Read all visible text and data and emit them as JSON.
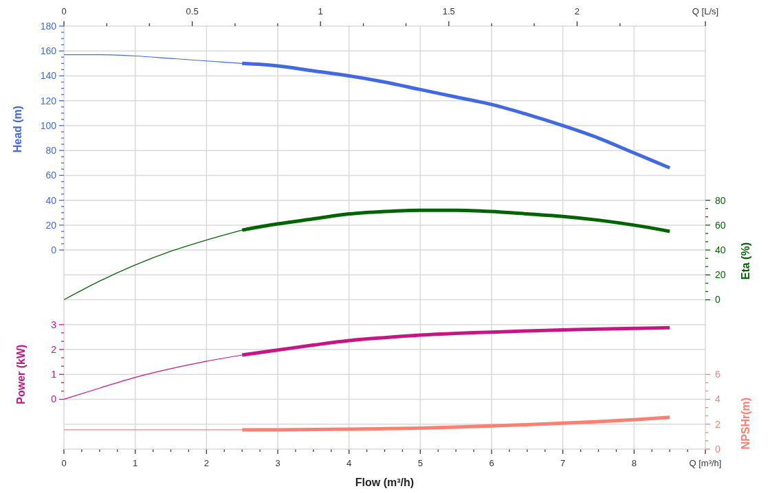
{
  "chart_data": [
    {
      "type": "line",
      "xlabel": "Flow (m³/h)",
      "ylabel": "Head (m)",
      "y2label": "Eta (%)",
      "xlim": [
        0,
        9
      ],
      "xticks": [
        0,
        {
          "value": 0.25,
          "label": null
        },
        {
          "value": 0.5,
          "label": null
        },
        {
          "value": 0.75,
          "label": null
        },
        1,
        {
          "value": 1.25,
          "label": null
        },
        {
          "value": 1.5,
          "label": null
        },
        {
          "value": 1.75,
          "label": null
        },
        2,
        {
          "value": 2.25,
          "label": null
        },
        {
          "value": 2.5,
          "label": null
        },
        {
          "value": 2.75,
          "label": null
        },
        3,
        {
          "value": 3.25,
          "label": null
        },
        {
          "value": 3.5,
          "label": null
        },
        {
          "value": 3.75,
          "label": null
        },
        4,
        {
          "value": 4.25,
          "label": null
        },
        {
          "value": 4.5,
          "label": null
        },
        {
          "value": 4.75,
          "label": null
        },
        5,
        {
          "value": 5.25,
          "label": null
        },
        {
          "value": 5.5,
          "label": null
        },
        {
          "value": 5.75,
          "label": null
        },
        6,
        {
          "value": 6.25,
          "label": null
        },
        {
          "value": 6.5,
          "label": null
        },
        {
          "value": 6.75,
          "label": null
        },
        7,
        {
          "value": 7.25,
          "label": null
        },
        {
          "value": 7.5,
          "label": null
        },
        {
          "value": 7.75,
          "label": null
        },
        8,
        {
          "value": 8.25,
          "label": null
        },
        {
          "value": 8.5,
          "label": null
        },
        {
          "value": 8.75,
          "label": null
        },
        {
          "value": 9,
          "label": "Q [m³/h]"
        }
      ],
      "x2lim": [
        0,
        2.5
      ],
      "x2ticks": [
        0,
        {
          "value": 0.167,
          "label": null
        },
        {
          "value": 0.333,
          "label": null
        },
        0.5,
        {
          "value": 0.667,
          "label": null
        },
        {
          "value": 0.833,
          "label": null
        },
        1,
        {
          "value": 1.167,
          "label": null
        },
        {
          "value": 1.333,
          "label": null
        },
        1.5,
        {
          "value": 1.667,
          "label": null
        },
        {
          "value": 1.833,
          "label": null
        },
        2,
        {
          "value": 2.167,
          "label": null
        },
        {
          "value": 2.5,
          "label": "Q [L/s]"
        }
      ],
      "ylim": [
        -160,
        180
      ],
      "yticks": [
        0,
        {
          "value": 5,
          "label": null
        },
        {
          "value": 10,
          "label": null
        },
        {
          "value": 15,
          "label": null
        },
        20,
        {
          "value": 25,
          "label": null
        },
        {
          "value": 30,
          "label": null
        },
        {
          "value": 35,
          "label": null
        },
        40,
        {
          "value": 45,
          "label": null
        },
        {
          "value": 50,
          "label": null
        },
        {
          "value": 55,
          "label": null
        },
        60,
        {
          "value": 65,
          "label": null
        },
        {
          "value": 70,
          "label": null
        },
        {
          "value": 75,
          "label": null
        },
        80,
        {
          "value": 85,
          "label": null
        },
        {
          "value": 90,
          "label": null
        },
        {
          "value": 95,
          "label": null
        },
        100,
        {
          "value": 105,
          "label": null
        },
        {
          "value": 110,
          "label": null
        },
        {
          "value": 115,
          "label": null
        },
        120,
        {
          "value": 125,
          "label": null
        },
        {
          "value": 130,
          "label": null
        },
        {
          "value": 135,
          "label": null
        },
        140,
        {
          "value": 145,
          "label": null
        },
        {
          "value": 150,
          "label": null
        },
        {
          "value": 155,
          "label": null
        },
        160,
        {
          "value": 165,
          "label": null
        },
        {
          "value": 170,
          "label": null
        },
        {
          "value": 175,
          "label": null
        },
        180
      ],
      "y2lim": [
        -120,
        220
      ],
      "y2ticks": [
        0,
        {
          "value": 6.67,
          "label": null
        },
        {
          "value": 13.33,
          "label": null
        },
        20,
        {
          "value": 26.67,
          "label": null
        },
        {
          "value": 33.33,
          "label": null
        },
        40,
        {
          "value": 46.67,
          "label": null
        },
        {
          "value": 53.33,
          "label": null
        },
        60,
        {
          "value": 66.67,
          "label": null
        },
        {
          "value": 73.33,
          "label": null
        },
        80
      ],
      "grid": true,
      "series": [
        {
          "color": "#4169e1",
          "x": [
            0,
            0.5,
            1,
            1.5,
            2,
            2.5
          ],
          "values": [
            157,
            157,
            156,
            154,
            152,
            150
          ]
        },
        {
          "color": "#4169e1",
          "x": [
            2.5,
            3,
            3.5,
            4,
            4.5,
            5,
            5.5,
            6,
            6.5,
            7,
            7.5,
            8,
            8.5
          ],
          "values": [
            150,
            148,
            144,
            140,
            135,
            129,
            123,
            117,
            109,
            100,
            90,
            78,
            66
          ]
        },
        {
          "color": "#006400",
          "axis": "y2",
          "x": [
            0,
            0.5,
            1,
            1.5,
            2,
            2.5
          ],
          "values": [
            0,
            15,
            28,
            39,
            48,
            56
          ]
        },
        {
          "color": "#006400",
          "axis": "y2",
          "x": [
            2.5,
            3,
            3.5,
            4,
            4.5,
            5,
            5.5,
            6,
            6.5,
            7,
            7.5,
            8,
            8.5
          ],
          "values": [
            56,
            61,
            65,
            69,
            71,
            72,
            72,
            71,
            69,
            67,
            64,
            60,
            55
          ]
        }
      ]
    },
    {
      "type": "line",
      "ylabel": "Power (kW)",
      "y2label": "NPSHr(m)",
      "tick_labels": "y",
      "xlim": [
        0,
        9
      ],
      "ylim": [
        -2,
        15
      ],
      "yticks": [
        0,
        {
          "value": 0.33,
          "label": null
        },
        {
          "value": 0.67,
          "label": null
        },
        1,
        {
          "value": 1.33,
          "label": null
        },
        {
          "value": 1.67,
          "label": null
        },
        2,
        {
          "value": 2.33,
          "label": null
        },
        {
          "value": 2.67,
          "label": null
        },
        3
      ],
      "y2lim": [
        0,
        34
      ],
      "y2ticks": [
        0,
        {
          "value": 0.67,
          "label": null
        },
        {
          "value": 1.33,
          "label": null
        },
        2,
        {
          "value": 2.67,
          "label": null
        },
        {
          "value": 3.33,
          "label": null
        },
        4,
        {
          "value": 4.67,
          "label": null
        },
        {
          "value": 5.33,
          "label": null
        },
        6
      ],
      "grid": "y",
      "series": [
        {
          "color": "#c71585",
          "x": [
            0,
            0.5,
            1,
            1.5,
            2,
            2.5
          ],
          "values": [
            0,
            0.45,
            0.88,
            1.23,
            1.53,
            1.78
          ]
        },
        {
          "color": "#c71585",
          "x": [
            2.5,
            3,
            3.5,
            4,
            4.5,
            5,
            5.5,
            6,
            6.5,
            7,
            7.5,
            8,
            8.5
          ],
          "values": [
            1.78,
            1.98,
            2.18,
            2.36,
            2.48,
            2.58,
            2.65,
            2.7,
            2.75,
            2.79,
            2.82,
            2.85,
            2.88
          ]
        },
        {
          "color": "#fa8072",
          "axis": "y2",
          "x": [
            0,
            0.5,
            1,
            1.5,
            2,
            2.5
          ],
          "values": [
            1.55,
            1.55,
            1.55,
            1.55,
            1.55,
            1.55
          ]
        },
        {
          "color": "#fa8072",
          "axis": "y2",
          "x": [
            2.5,
            3,
            3.5,
            4,
            4.5,
            5,
            5.5,
            6,
            6.5,
            7,
            7.5,
            8,
            8.5
          ],
          "values": [
            1.55,
            1.55,
            1.57,
            1.6,
            1.64,
            1.68,
            1.76,
            1.86,
            1.96,
            2.08,
            2.21,
            2.36,
            2.55
          ]
        }
      ]
    }
  ]
}
